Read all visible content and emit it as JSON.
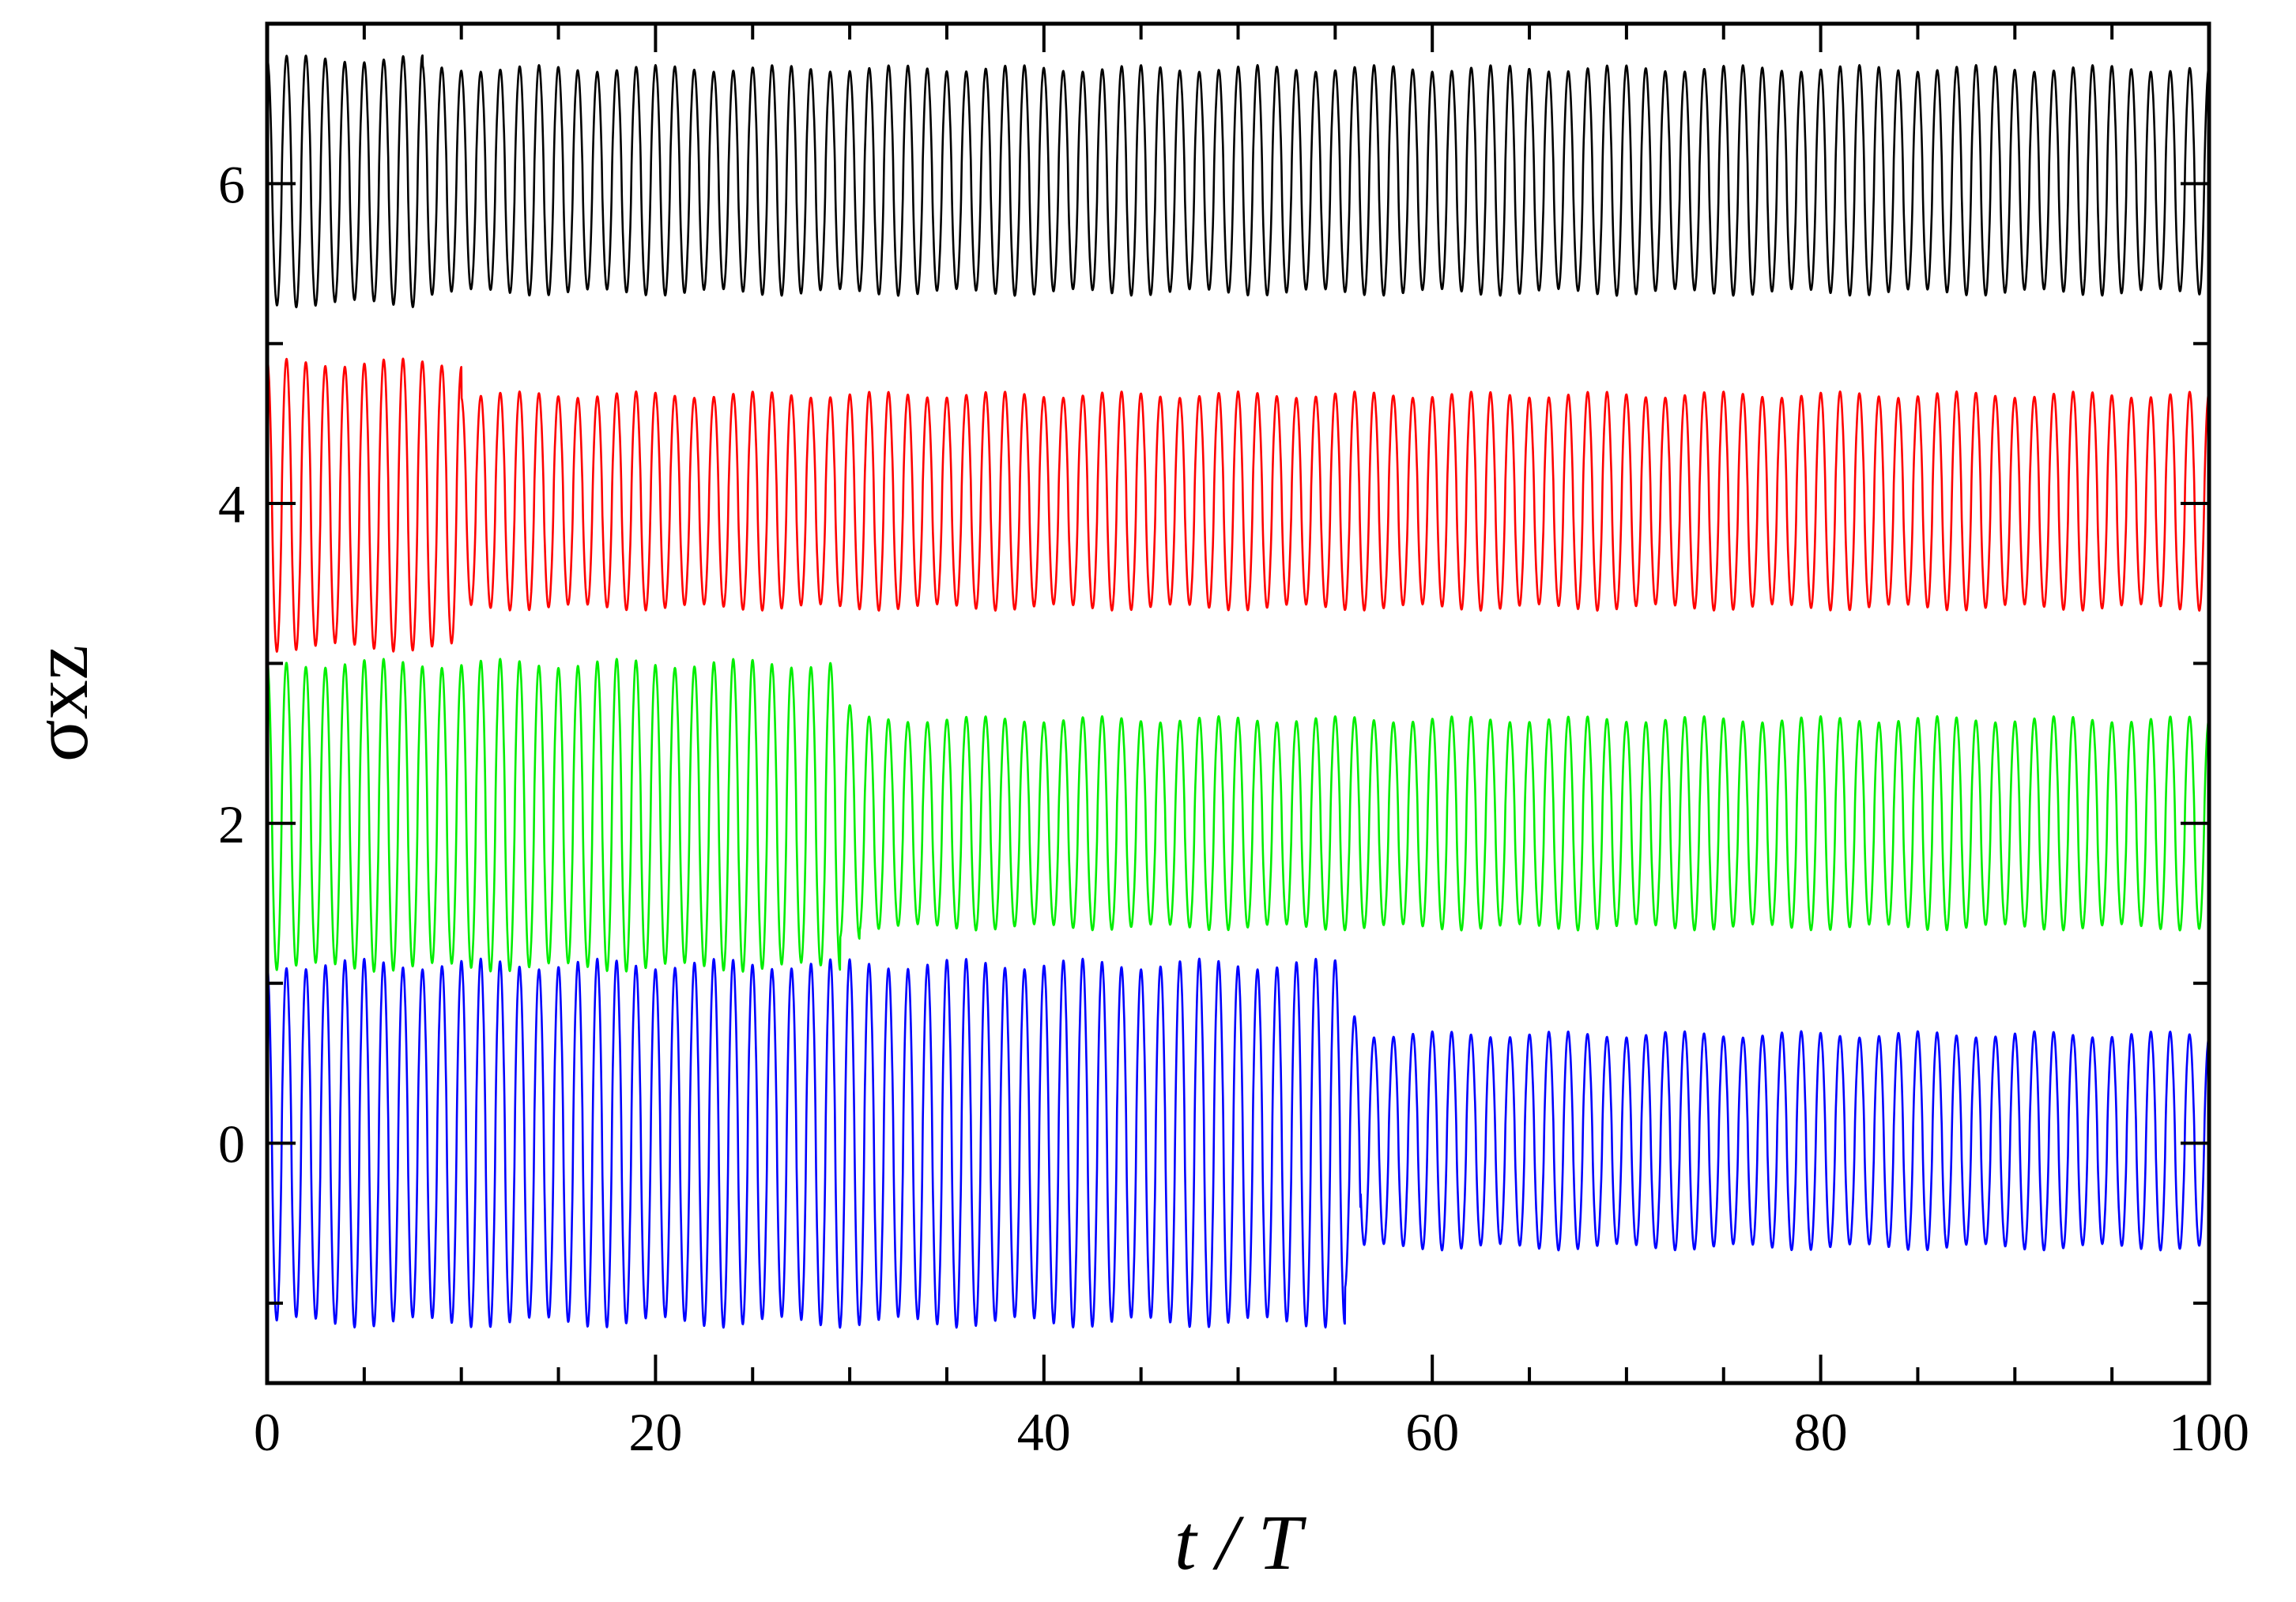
{
  "chart_data": {
    "type": "line",
    "xlabel": "t / T",
    "ylabel": "σxz",
    "xlim": [
      0,
      100
    ],
    "ylim": [
      -1.5,
      7.0
    ],
    "x_ticks": [
      0,
      20,
      40,
      60,
      80,
      100
    ],
    "x_tick_labels": [
      "0",
      "20",
      "40",
      "60",
      "80",
      "100"
    ],
    "y_ticks": [
      0,
      2,
      4,
      6
    ],
    "y_tick_labels": [
      "0",
      "2",
      "4",
      "6"
    ],
    "x_minor_step": 5,
    "y_minor_step": 1,
    "grid": false,
    "legend": "none",
    "periods": 100,
    "series": [
      {
        "color": "#000000",
        "segments": [
          {
            "from": 0,
            "to": 8,
            "min": 5.25,
            "max": 6.78
          },
          {
            "from": 8,
            "to": 100,
            "min": 5.32,
            "max": 6.72
          }
        ]
      },
      {
        "color": "#ff0000",
        "segments": [
          {
            "from": 0,
            "to": 10,
            "min": 3.1,
            "max": 4.88
          },
          {
            "from": 10,
            "to": 100,
            "min": 3.35,
            "max": 4.68
          }
        ]
      },
      {
        "color": "#00ee00",
        "segments": [
          {
            "from": 0,
            "to": 29.5,
            "min": 1.1,
            "max": 3.0
          },
          {
            "from": 29.5,
            "to": 30.5,
            "min": 1.3,
            "max": 2.72
          },
          {
            "from": 30.5,
            "to": 100,
            "min": 1.35,
            "max": 2.65
          }
        ]
      },
      {
        "color": "#0000ff",
        "segments": [
          {
            "from": 0,
            "to": 55.5,
            "min": -1.12,
            "max": 1.12
          },
          {
            "from": 55.5,
            "to": 56.3,
            "min": -0.9,
            "max": 0.8
          },
          {
            "from": 56.3,
            "to": 100,
            "min": -0.65,
            "max": 0.68
          }
        ]
      }
    ]
  }
}
